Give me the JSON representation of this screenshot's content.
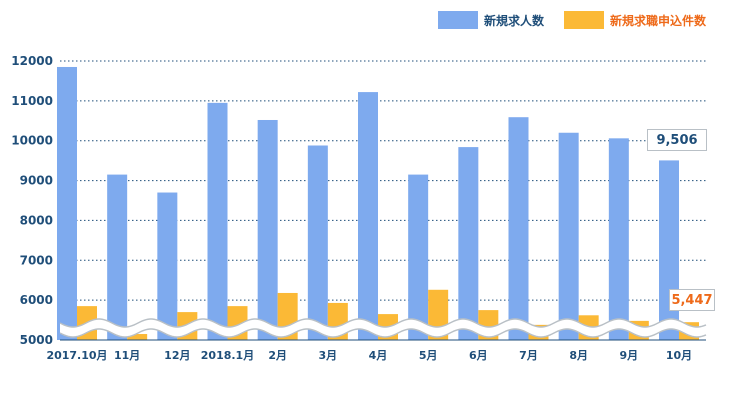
{
  "chart_data": {
    "type": "bar",
    "categories": [
      "2017.10月",
      "11月",
      "12月",
      "2018.1月",
      "2月",
      "3月",
      "4月",
      "5月",
      "6月",
      "7月",
      "8月",
      "9月",
      "10月"
    ],
    "series": [
      {
        "name": "新規求人数",
        "color": "#7eaaee",
        "values": [
          11850,
          9150,
          8700,
          10950,
          10520,
          9880,
          11220,
          9150,
          9840,
          10590,
          10200,
          10060,
          9506
        ]
      },
      {
        "name": "新規求職申込件数",
        "color": "#fbb936",
        "values": [
          5850,
          5150,
          5700,
          5850,
          6180,
          5930,
          5650,
          6260,
          5750,
          5380,
          5620,
          5480,
          5447
        ]
      }
    ],
    "yticks": [
      5000,
      6000,
      7000,
      8000,
      9000,
      10000,
      11000,
      12000
    ],
    "ylim": [
      5000,
      12000
    ],
    "axis_break": true,
    "grid": "dotted horizontal",
    "legend_position": "top-right",
    "callouts": [
      {
        "label": "9,506",
        "color": "#1f4e79"
      },
      {
        "label": "5,447",
        "color": "#ee6a1a"
      }
    ]
  }
}
